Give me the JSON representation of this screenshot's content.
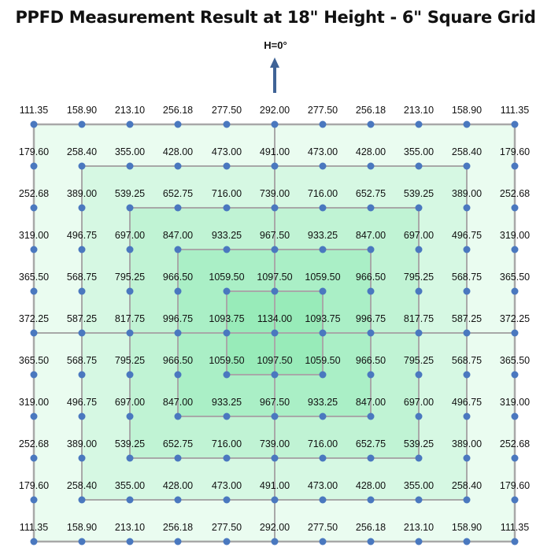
{
  "chart_data": {
    "type": "heatmap",
    "title": "PPFD Measurement Result at 18\" Height - 6\" Square Grid",
    "orientation_label": "H=0°",
    "grid_spacing_inches": 6,
    "height_inches": 18,
    "rows": [
      [
        "111.35",
        "158.90",
        "213.10",
        "256.18",
        "277.50",
        "292.00",
        "277.50",
        "256.18",
        "213.10",
        "158.90",
        "111.35"
      ],
      [
        "179.60",
        "258.40",
        "355.00",
        "428.00",
        "473.00",
        "491.00",
        "473.00",
        "428.00",
        "355.00",
        "258.40",
        "179.60"
      ],
      [
        "252.68",
        "389.00",
        "539.25",
        "652.75",
        "716.00",
        "739.00",
        "716.00",
        "652.75",
        "539.25",
        "389.00",
        "252.68"
      ],
      [
        "319.00",
        "496.75",
        "697.00",
        "847.00",
        "933.25",
        "967.50",
        "933.25",
        "847.00",
        "697.00",
        "496.75",
        "319.00"
      ],
      [
        "365.50",
        "568.75",
        "795.25",
        "966.50",
        "1059.50",
        "1097.50",
        "1059.50",
        "966.50",
        "795.25",
        "568.75",
        "365.50"
      ],
      [
        "372.25",
        "587.25",
        "817.75",
        "996.75",
        "1093.75",
        "1134.00",
        "1093.75",
        "996.75",
        "817.75",
        "587.25",
        "372.25"
      ],
      [
        "365.50",
        "568.75",
        "795.25",
        "966.50",
        "1059.50",
        "1097.50",
        "1059.50",
        "966.50",
        "795.25",
        "568.75",
        "365.50"
      ],
      [
        "319.00",
        "496.75",
        "697.00",
        "847.00",
        "933.25",
        "967.50",
        "933.25",
        "847.00",
        "697.00",
        "496.75",
        "319.00"
      ],
      [
        "252.68",
        "389.00",
        "539.25",
        "652.75",
        "716.00",
        "739.00",
        "716.00",
        "652.75",
        "539.25",
        "389.00",
        "252.68"
      ],
      [
        "179.60",
        "258.40",
        "355.00",
        "428.00",
        "473.00",
        "491.00",
        "473.00",
        "428.00",
        "355.00",
        "258.40",
        "179.60"
      ],
      [
        "111.35",
        "158.90",
        "213.10",
        "256.18",
        "277.50",
        "292.00",
        "277.50",
        "256.18",
        "213.10",
        "158.90",
        "111.35"
      ]
    ],
    "max_value": 1134.0,
    "min_value": 111.35,
    "units": "PPFD",
    "colors": {
      "dot": "#4a78bf",
      "grid_line": "#a8a8a8",
      "arrow": "#3f6396",
      "fill_levels": [
        "#eafcf0",
        "#d6f8e3",
        "#c0f3d4",
        "#aaefc6",
        "#98ebb9"
      ]
    }
  }
}
